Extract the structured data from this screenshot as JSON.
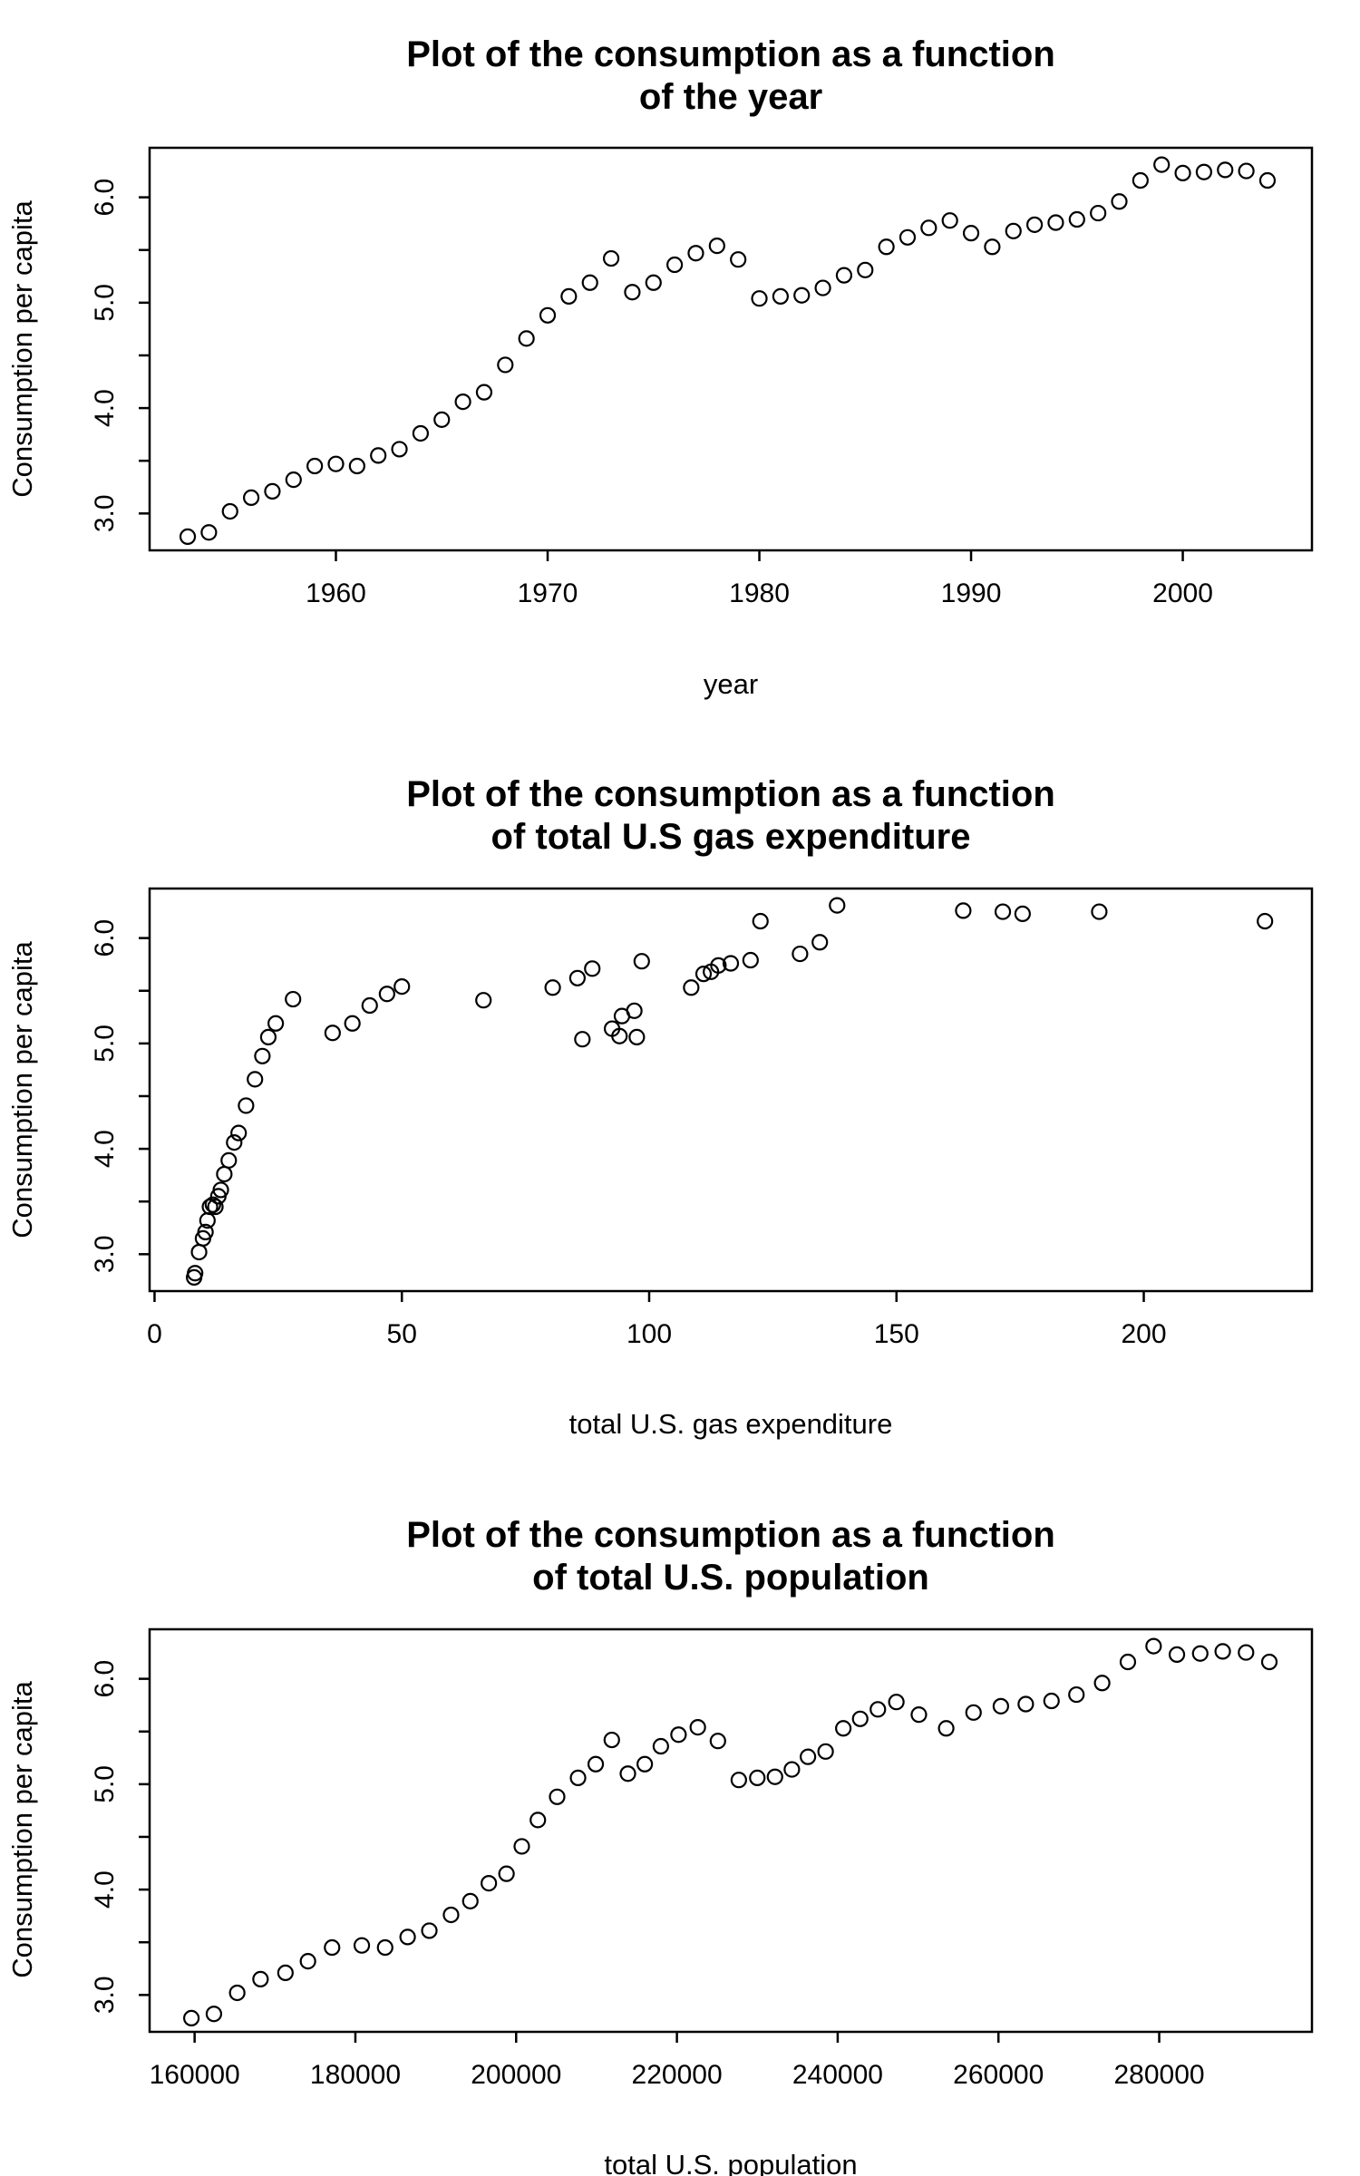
{
  "chart_data": [
    {
      "type": "scatter",
      "title": [
        "Plot of the consumption as a function",
        "of the year"
      ],
      "xlabel": "year",
      "ylabel": "Consumption per capita",
      "xlim": [
        1951.2,
        2006.1
      ],
      "ylim": [
        2.65,
        6.47
      ],
      "xticks": [
        1960,
        1970,
        1980,
        1990,
        2000
      ],
      "xtick_labels": [
        "1960",
        "1970",
        "1980",
        "1990",
        "2000"
      ],
      "yticks": [
        3.0,
        3.5,
        4.0,
        4.5,
        5.0,
        5.5,
        6.0
      ],
      "ytick_labels": [
        "3.0",
        "",
        "4.0",
        "",
        "5.0",
        "",
        "6.0"
      ],
      "grid": false,
      "series": [
        {
          "x": [
            1953,
            1954,
            1955,
            1956,
            1957,
            1958,
            1959,
            1960,
            1961,
            1962,
            1963,
            1964,
            1965,
            1966,
            1967,
            1968,
            1969,
            1970,
            1971,
            1972,
            1973,
            1974,
            1975,
            1976,
            1977,
            1978,
            1979,
            1980,
            1981,
            1982,
            1983,
            1984,
            1985,
            1986,
            1987,
            1988,
            1989,
            1990,
            1991,
            1992,
            1993,
            1994,
            1995,
            1996,
            1997,
            1998,
            1999,
            2000,
            2001,
            2002,
            2003,
            2004
          ],
          "y": [
            2.78,
            2.82,
            3.02,
            3.15,
            3.21,
            3.32,
            3.45,
            3.47,
            3.45,
            3.55,
            3.61,
            3.76,
            3.89,
            4.06,
            4.15,
            4.41,
            4.66,
            4.88,
            5.06,
            5.19,
            5.42,
            5.1,
            5.19,
            5.36,
            5.47,
            5.54,
            5.41,
            5.04,
            5.06,
            5.07,
            5.14,
            5.26,
            5.31,
            5.53,
            5.62,
            5.71,
            5.78,
            5.66,
            5.53,
            5.68,
            5.74,
            5.76,
            5.79,
            5.85,
            5.96,
            6.16,
            6.31,
            6.23,
            6.24,
            6.26,
            6.25,
            6.16
          ]
        }
      ]
    },
    {
      "type": "scatter",
      "title": [
        "Plot of the consumption as a function",
        "of total U.S gas expenditure"
      ],
      "xlabel": "total U.S. gas expenditure",
      "ylabel": "Consumption per capita",
      "xlim": [
        -1,
        234
      ],
      "ylim": [
        2.65,
        6.47
      ],
      "xticks": [
        0,
        50,
        100,
        150,
        200
      ],
      "xtick_labels": [
        "0",
        "50",
        "100",
        "150",
        "200"
      ],
      "yticks": [
        3.0,
        3.5,
        4.0,
        4.5,
        5.0,
        5.5,
        6.0
      ],
      "ytick_labels": [
        "3.0",
        "",
        "4.0",
        "",
        "5.0",
        "",
        "6.0"
      ],
      "grid": false,
      "series": [
        {
          "x": [
            8.0,
            8.2,
            9.0,
            9.8,
            10.3,
            10.7,
            11.2,
            11.8,
            12.3,
            12.9,
            13.4,
            14.1,
            15.0,
            16.1,
            17.0,
            18.5,
            20.3,
            21.8,
            23.0,
            24.5,
            28.0,
            36.0,
            40.0,
            43.5,
            47.0,
            50.0,
            66.5,
            80.5,
            85.5,
            86.5,
            88.5,
            92.5,
            94.0,
            94.5,
            97.0,
            97.5,
            98.5,
            108.5,
            111.0,
            112.5,
            114.0,
            116.5,
            120.5,
            122.5,
            130.5,
            134.5,
            138.0,
            163.5,
            171.5,
            175.5,
            191.0,
            224.5
          ],
          "y": [
            2.78,
            2.82,
            3.02,
            3.15,
            3.21,
            3.32,
            3.45,
            3.47,
            3.45,
            3.55,
            3.61,
            3.76,
            3.89,
            4.06,
            4.15,
            4.41,
            4.66,
            4.88,
            5.06,
            5.19,
            5.42,
            5.1,
            5.19,
            5.36,
            5.47,
            5.54,
            5.41,
            5.53,
            5.62,
            5.04,
            5.71,
            5.14,
            5.07,
            5.26,
            5.31,
            5.06,
            5.78,
            5.53,
            5.66,
            5.68,
            5.74,
            5.76,
            5.79,
            6.16,
            5.85,
            5.96,
            6.31,
            6.26,
            6.25,
            6.23,
            6.25,
            6.16
          ]
        }
      ]
    },
    {
      "type": "scatter",
      "title": [
        "Plot of the consumption as a function",
        "of total U.S. population"
      ],
      "xlabel": "total U.S. population",
      "ylabel": "Consumption per capita",
      "xlim": [
        154400,
        299000
      ],
      "ylim": [
        2.65,
        6.47
      ],
      "xticks": [
        160000,
        180000,
        200000,
        220000,
        240000,
        260000,
        280000
      ],
      "xtick_labels": [
        "160000",
        "180000",
        "200000",
        "220000",
        "240000",
        "260000",
        "280000"
      ],
      "yticks": [
        3.0,
        3.5,
        4.0,
        4.5,
        5.0,
        5.5,
        6.0
      ],
      "ytick_labels": [
        "3.0",
        "",
        "4.0",
        "",
        "5.0",
        "",
        "6.0"
      ],
      "grid": false,
      "series": [
        {
          "x": [
            159600,
            162400,
            165300,
            168200,
            171300,
            174100,
            177100,
            180800,
            183700,
            186500,
            189200,
            191900,
            194300,
            196600,
            198800,
            200700,
            202700,
            205100,
            207700,
            209900,
            211900,
            213900,
            216000,
            218000,
            220200,
            222600,
            225100,
            227700,
            230000,
            232200,
            234300,
            236300,
            238500,
            240700,
            242800,
            245000,
            247300,
            250100,
            253500,
            256900,
            260300,
            263400,
            266600,
            269700,
            272900,
            276100,
            279300,
            282200,
            285100,
            287900,
            290800,
            293700
          ],
          "y": [
            2.78,
            2.82,
            3.02,
            3.15,
            3.21,
            3.32,
            3.45,
            3.47,
            3.45,
            3.55,
            3.61,
            3.76,
            3.89,
            4.06,
            4.15,
            4.41,
            4.66,
            4.88,
            5.06,
            5.19,
            5.42,
            5.1,
            5.19,
            5.36,
            5.47,
            5.54,
            5.41,
            5.04,
            5.06,
            5.07,
            5.14,
            5.26,
            5.31,
            5.53,
            5.62,
            5.71,
            5.78,
            5.66,
            5.53,
            5.68,
            5.74,
            5.76,
            5.79,
            5.85,
            5.96,
            6.16,
            6.31,
            6.23,
            6.24,
            6.26,
            6.25,
            6.16
          ]
        }
      ]
    }
  ]
}
